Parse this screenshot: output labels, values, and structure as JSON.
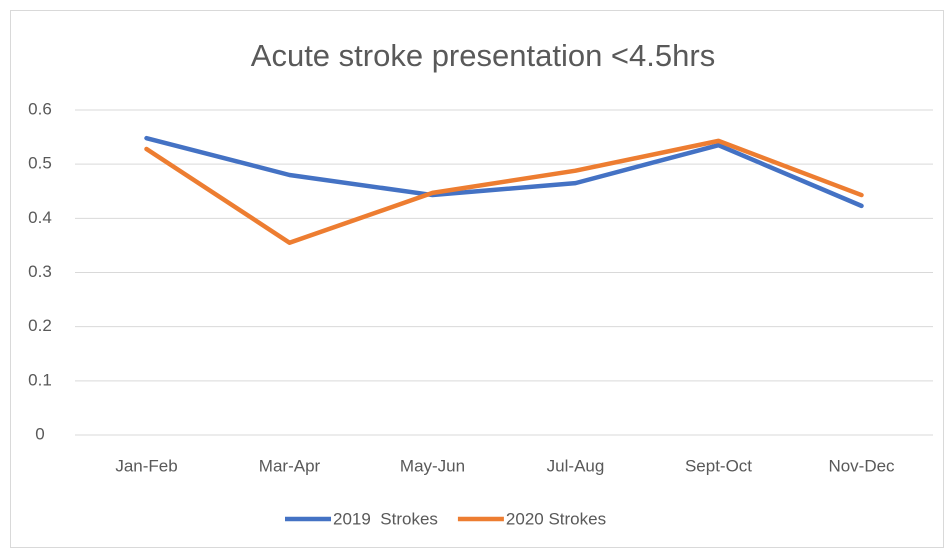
{
  "chart_data": {
    "type": "line",
    "title": "Acute stroke presentation <4.5hrs",
    "categories": [
      "Jan-Feb",
      "Mar-Apr",
      "May-Jun",
      "Jul-Aug",
      "Sept-Oct",
      "Nov-Dec"
    ],
    "series": [
      {
        "name": "2019  Strokes",
        "color": "#4472c4",
        "values": [
          0.548,
          0.48,
          0.443,
          0.465,
          0.535,
          0.423
        ]
      },
      {
        "name": "2020 Strokes",
        "color": "#ed7d31",
        "values": [
          0.528,
          0.355,
          0.447,
          0.488,
          0.543,
          0.443
        ]
      }
    ],
    "ylim": [
      0,
      0.6
    ],
    "yticks": [
      0,
      0.1,
      0.2,
      0.3,
      0.4,
      0.5,
      0.6
    ],
    "grid": true,
    "legend": "bottom"
  }
}
